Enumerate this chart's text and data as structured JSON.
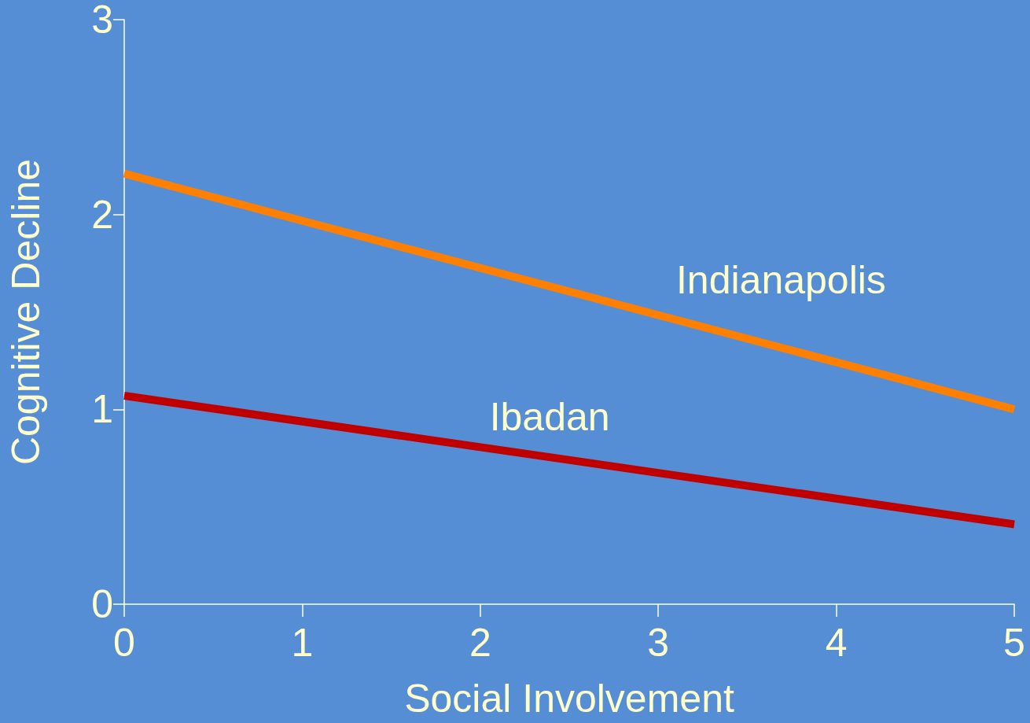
{
  "chart_data": {
    "type": "line",
    "xlabel": "Social Involvement",
    "ylabel": "Cognitive Decline",
    "x": [
      0,
      5
    ],
    "xlim": [
      0,
      5
    ],
    "xticks": [
      0,
      1,
      2,
      3,
      4,
      5
    ],
    "ylim": [
      0,
      3
    ],
    "yticks": [
      0,
      1,
      2,
      3
    ],
    "grid": false,
    "legend": false,
    "marker": "none",
    "line_style": "solid",
    "series": [
      {
        "name": "Indianapolis",
        "color": "#ff8000",
        "values": [
          2.21,
          1.0
        ]
      },
      {
        "name": "Ibadan",
        "color": "#c00000",
        "values": [
          1.07,
          0.41
        ]
      }
    ]
  }
}
